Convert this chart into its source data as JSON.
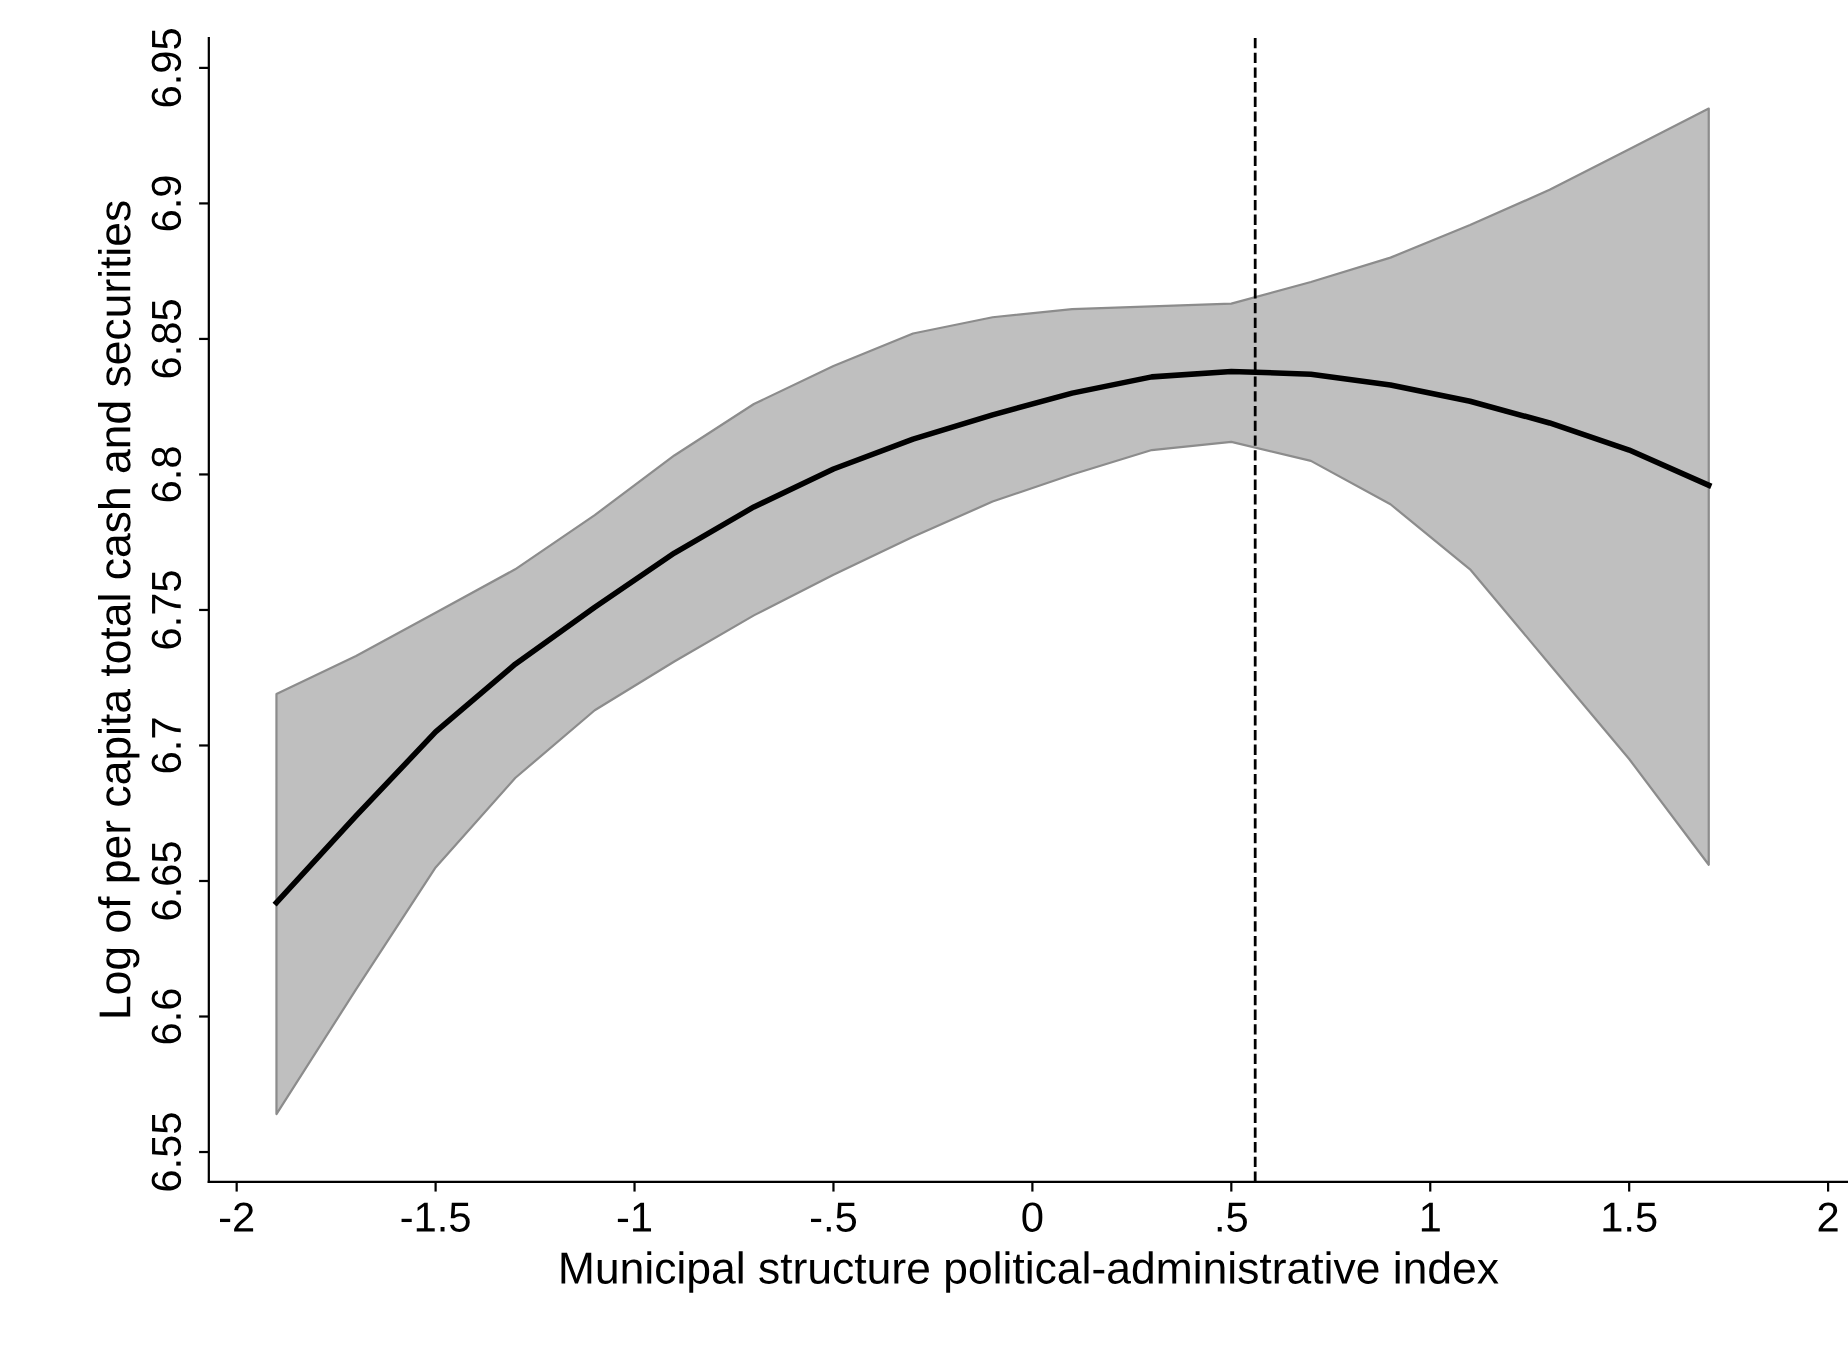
{
  "chart_data": {
    "type": "line",
    "xlabel": "Municipal structure political-administrative index",
    "ylabel": "Log of per capita total cash and securities",
    "series": [
      {
        "color": "#000000",
        "x": [
          -1.9,
          -1.7,
          -1.5,
          -1.3,
          -1.1,
          -0.9,
          -0.7,
          -0.5,
          -0.3,
          -0.1,
          0.1,
          0.3,
          0.5,
          0.7,
          0.9,
          1.1,
          1.3,
          1.5,
          1.7
        ],
        "values": [
          6.642,
          6.674,
          6.705,
          6.73,
          6.751,
          6.771,
          6.788,
          6.802,
          6.813,
          6.822,
          6.83,
          6.836,
          6.838,
          6.837,
          6.833,
          6.827,
          6.819,
          6.809,
          6.796
        ],
        "upper": [
          6.719,
          6.733,
          6.749,
          6.765,
          6.785,
          6.807,
          6.826,
          6.84,
          6.852,
          6.858,
          6.861,
          6.862,
          6.863,
          6.871,
          6.88,
          6.892,
          6.905,
          6.92,
          6.935
        ],
        "lower": [
          6.564,
          6.61,
          6.655,
          6.688,
          6.713,
          6.731,
          6.748,
          6.763,
          6.777,
          6.79,
          6.8,
          6.809,
          6.812,
          6.805,
          6.789,
          6.765,
          6.73,
          6.695,
          6.656
        ]
      }
    ],
    "xlim": [
      -2.07,
      2.05
    ],
    "ylim": [
      6.539,
      6.961
    ],
    "xticks": [
      -2,
      -1.5,
      -1,
      {
        "value": -0.5,
        "label": "-.5"
      },
      0,
      {
        "value": 0.5,
        "label": ".5"
      },
      1,
      1.5,
      2
    ],
    "yticks": [
      6.55,
      6.6,
      6.65,
      6.7,
      6.75,
      6.8,
      6.85,
      6.9,
      6.95
    ],
    "ref_lines": [
      {
        "axis": "x",
        "value": 0.56,
        "color": "#000000",
        "line_style": "dashed"
      }
    ],
    "grid": false,
    "legend": false,
    "marker": "none",
    "line_style": "solid"
  }
}
